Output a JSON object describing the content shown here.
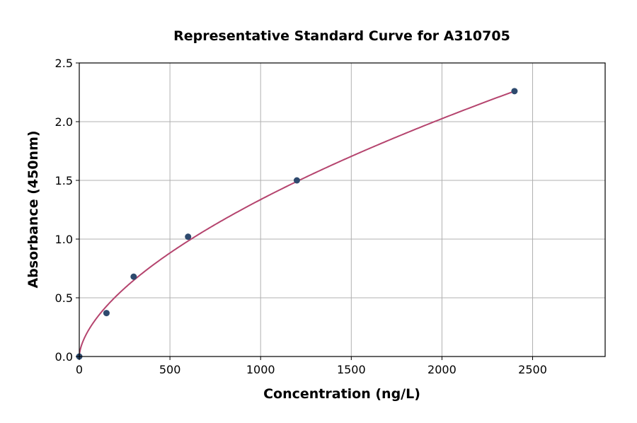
{
  "chart_data": {
    "type": "scatter",
    "title": "Representative Standard Curve for A310705",
    "xlabel": "Concentration (ng/L)",
    "ylabel": "Absorbance (450nm)",
    "xlim": [
      0,
      2900
    ],
    "ylim": [
      0,
      2.5
    ],
    "xticks": [
      0,
      500,
      1000,
      1500,
      2000,
      2500
    ],
    "yticks": [
      0.0,
      0.5,
      1.0,
      1.5,
      2.0,
      2.5
    ],
    "xtick_labels": [
      "0",
      "500",
      "1000",
      "1500",
      "2000",
      "2500"
    ],
    "ytick_labels": [
      "0.0",
      "0.5",
      "1.0",
      "1.5",
      "2.0",
      "2.5"
    ],
    "grid": true,
    "points": {
      "x": [
        0,
        150,
        300,
        600,
        1200,
        2400
      ],
      "y": [
        0.0,
        0.37,
        0.68,
        1.02,
        1.5,
        2.26
      ]
    },
    "fit": {
      "model": "power",
      "a": 0.02118,
      "b": 0.6,
      "x_range": [
        0,
        2400
      ]
    },
    "colors": {
      "points": "#2e4a6e",
      "curve": "#b5446e",
      "grid": "#b0b0b0"
    }
  }
}
